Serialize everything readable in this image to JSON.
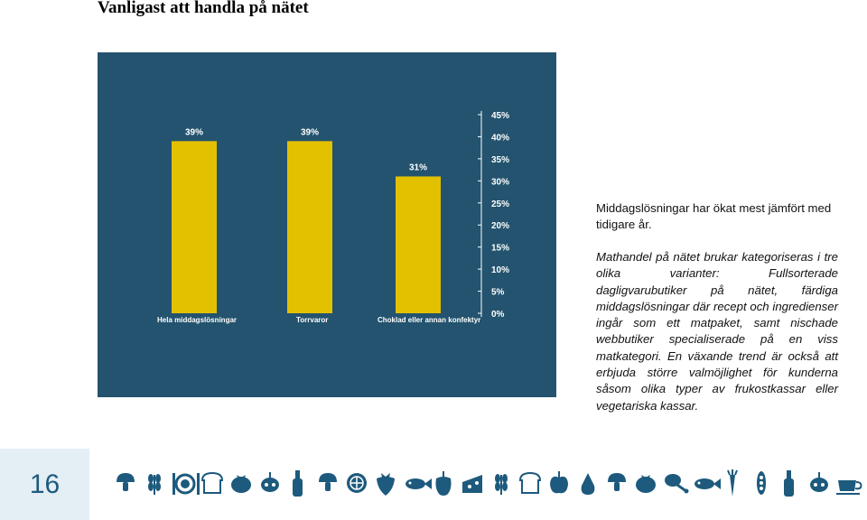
{
  "page": {
    "title": "Vanligast att handla på nätet",
    "page_number": "16"
  },
  "side_text": {
    "heading": "Middagslösningar har ökat mest jämfört med tidigare år.",
    "body": "Mathandel på nätet brukar kategoriseras i tre olika varianter: Fullsorterade dagligvarubutiker på nätet, färdiga middagslösningar där recept och ingredienser ingår som ett matpaket, samt nischade webbutiker specialiserade på en viss matkategori. En växande trend är också att erbjuda större valmöjlighet för kunderna såsom olika typer av frukostkassar eller vegetariska kassar."
  },
  "chart_data": {
    "type": "bar",
    "categories": [
      "Hela middagslösningar",
      "Torrvaror",
      "Choklad eller annan konfektyr"
    ],
    "values": [
      39,
      39,
      31
    ],
    "value_labels": [
      "39%",
      "39%",
      "31%"
    ],
    "ylim": [
      0,
      45
    ],
    "yticks": [
      "0%",
      "5%",
      "10%",
      "15%",
      "20%",
      "25%",
      "30%",
      "35%",
      "40%",
      "45%"
    ],
    "y_axis_position": "right",
    "grid": false,
    "colors": {
      "background": "#23536e",
      "bar": "#e3c000",
      "text": "#ffffff"
    }
  },
  "footer": {
    "icons": [
      "mushroom-icon",
      "wheat-icon",
      "cutlery-plate-icon",
      "bread-icon",
      "tomato-icon",
      "radish-icon",
      "bottle-icon",
      "mushroom-icon",
      "citrus-icon",
      "strawberry-icon",
      "fish-icon",
      "pepper-icon",
      "cheese-icon",
      "wheat-icon",
      "bread-icon",
      "apple-icon",
      "pear-icon",
      "mushroom-icon",
      "tomato-icon",
      "drumstick-icon",
      "fish-icon",
      "carrot-icon",
      "peapod-icon",
      "bottle-icon",
      "radish-icon",
      "coffee-cup-icon"
    ],
    "icon_color": "#1d5a7d"
  }
}
